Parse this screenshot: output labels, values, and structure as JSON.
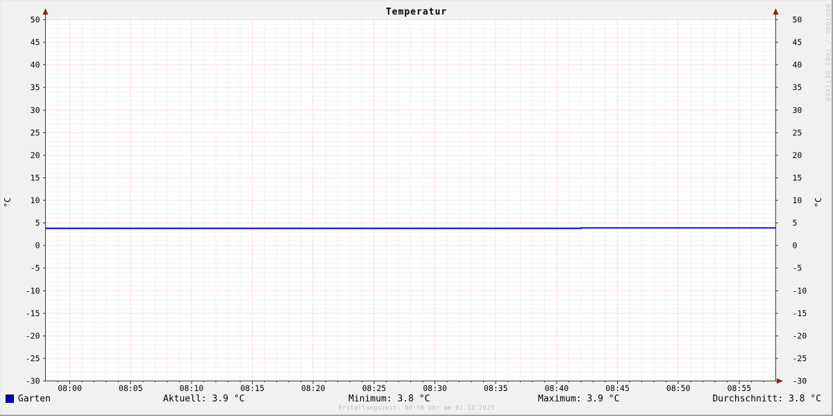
{
  "title": "Temperatur",
  "watermark": "RRDTOOL / TOBI OETIKER",
  "footer": "Erstellungszeit: 08:58 Uhr am 02.12.2025",
  "axis_unit_left": "°C",
  "axis_unit_right": "°C",
  "legend": {
    "series_label": "Garten",
    "stats": [
      {
        "text": "Aktuell: 3.9 °C"
      },
      {
        "text": "Minimum: 3.8 °C"
      },
      {
        "text": "Maximum: 3.9 °C"
      },
      {
        "text": "Durchschnitt: 3.8 °C"
      }
    ]
  },
  "colors": {
    "background": "#f1f1f1",
    "canvas": "#ffffff",
    "grid_minor": "#dcdcdc",
    "grid_major": "#eea8a8",
    "axis": "#333333",
    "arrow": "#8f1f1f",
    "line": "#0000cc",
    "tick_text": "#000000"
  },
  "chart_data": {
    "type": "line",
    "title": "Temperatur",
    "ylabel": "°C",
    "ylim": [
      -30,
      50
    ],
    "y_major_step": 5,
    "y_minor_step": 1,
    "x_range": [
      "07:58",
      "08:58"
    ],
    "x_major_step_min": 5,
    "x_minor_step_min": 1,
    "x_tick_labels": [
      "08:00",
      "08:05",
      "08:10",
      "08:15",
      "08:20",
      "08:25",
      "08:30",
      "08:35",
      "08:40",
      "08:45",
      "08:50",
      "08:55"
    ],
    "grid": true,
    "legend_position": "bottom",
    "series": [
      {
        "name": "Garten",
        "color": "#0000cc",
        "points": [
          {
            "t": "07:58",
            "v": 3.8
          },
          {
            "t": "08:42",
            "v": 3.8
          },
          {
            "t": "08:42",
            "v": 3.9
          },
          {
            "t": "08:58",
            "v": 3.9
          }
        ]
      }
    ]
  }
}
